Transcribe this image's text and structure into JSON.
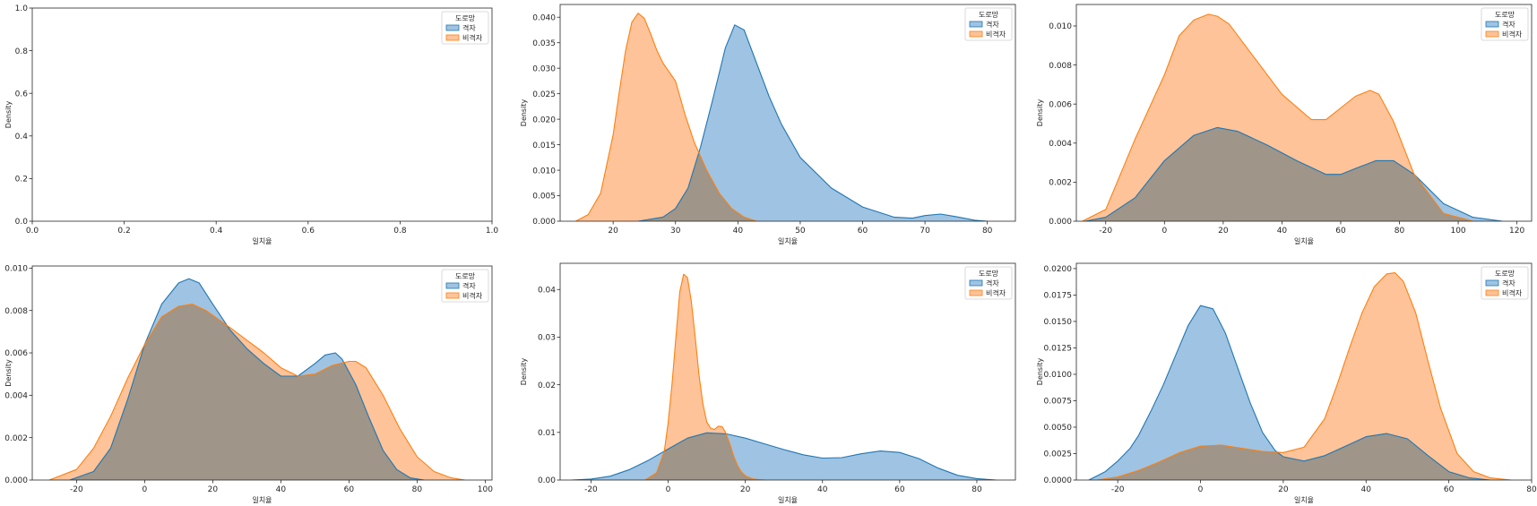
{
  "legend_title": "도로망",
  "legend_labels": [
    "격자",
    "비격자"
  ],
  "colors": {
    "grid": "#1f77b4",
    "nongrid": "#ff7f0e",
    "grid_fill": "#9fc3e2",
    "nongrid_fill": "#ffc399",
    "overlap_fill": "#bdbcb4",
    "axis": "#262626"
  },
  "chart_data": [
    {
      "type": "area",
      "xlabel": "일치율",
      "ylabel": "Density",
      "xlim": [
        0,
        1
      ],
      "ylim": [
        0,
        1
      ],
      "xticks": [
        "0.0",
        "0.2",
        "0.4",
        "0.6",
        "0.8",
        "1.0"
      ],
      "yticks": [
        "0.0",
        "0.2",
        "0.4",
        "0.6",
        "0.8",
        "1.0"
      ],
      "legend": "top-right",
      "series": [
        {
          "name": "격자",
          "x": [],
          "y": []
        },
        {
          "name": "비격자",
          "x": [],
          "y": []
        }
      ]
    },
    {
      "type": "area",
      "xlabel": "일치율",
      "ylabel": "Density",
      "xlim": [
        11.5,
        84.5
      ],
      "ylim": [
        0,
        0.0425
      ],
      "xticks": [
        "20",
        "30",
        "40",
        "50",
        "60",
        "70",
        "80"
      ],
      "yticks": [
        "0.000",
        "0.005",
        "0.010",
        "0.015",
        "0.020",
        "0.025",
        "0.030",
        "0.035",
        "0.040"
      ],
      "legend": "top-right",
      "series": [
        {
          "name": "격자",
          "x": [
            24,
            28,
            30,
            32,
            34,
            36,
            38,
            39.5,
            41,
            43,
            45,
            47,
            50,
            55,
            60,
            65,
            68,
            70,
            72.5,
            75,
            78,
            80
          ],
          "y": [
            0,
            0.0008,
            0.0025,
            0.0065,
            0.0145,
            0.024,
            0.034,
            0.0385,
            0.0375,
            0.031,
            0.0245,
            0.019,
            0.0125,
            0.0065,
            0.0028,
            0.0008,
            0.0006,
            0.0011,
            0.0014,
            0.0009,
            0.0002,
            0
          ]
        },
        {
          "name": "비격자",
          "x": [
            14,
            16,
            18,
            20,
            21,
            22,
            23,
            24,
            25,
            26,
            27,
            28,
            30,
            31.5,
            33,
            35,
            37,
            39,
            41,
            43
          ],
          "y": [
            0,
            0.0013,
            0.0055,
            0.017,
            0.0255,
            0.0335,
            0.039,
            0.0408,
            0.0398,
            0.0368,
            0.0335,
            0.031,
            0.0275,
            0.021,
            0.0155,
            0.01,
            0.0055,
            0.0025,
            0.0008,
            0
          ]
        }
      ]
    },
    {
      "type": "area",
      "xlabel": "일치율",
      "ylabel": "Density",
      "xlim": [
        -30,
        125
      ],
      "ylim": [
        0,
        0.0111
      ],
      "xticks": [
        "-20",
        "0",
        "20",
        "40",
        "60",
        "80",
        "100",
        "120"
      ],
      "yticks": [
        "0.000",
        "0.002",
        "0.004",
        "0.006",
        "0.008",
        "0.010"
      ],
      "legend": "top-right",
      "series": [
        {
          "name": "격자",
          "x": [
            -27,
            -20,
            -10,
            0,
            10,
            18,
            25,
            35,
            45,
            55,
            60,
            65,
            72,
            78,
            85,
            95,
            105,
            115
          ],
          "y": [
            0,
            0.0002,
            0.0012,
            0.0031,
            0.0044,
            0.0048,
            0.0046,
            0.0039,
            0.0031,
            0.0024,
            0.0024,
            0.0027,
            0.0031,
            0.0031,
            0.0024,
            0.0009,
            0.0002,
            0
          ]
        },
        {
          "name": "비격자",
          "x": [
            -28,
            -20,
            -10,
            0,
            5,
            10,
            15,
            18,
            22,
            30,
            40,
            50,
            55,
            60,
            65,
            70,
            73,
            78,
            85,
            95,
            105
          ],
          "y": [
            0,
            0.0006,
            0.0042,
            0.0075,
            0.0095,
            0.0103,
            0.0106,
            0.0105,
            0.0101,
            0.0085,
            0.0065,
            0.0052,
            0.0052,
            0.0058,
            0.0064,
            0.0067,
            0.0065,
            0.0051,
            0.0024,
            0.0004,
            0
          ]
        }
      ]
    },
    {
      "type": "area",
      "xlabel": "일치율",
      "ylabel": "Density",
      "xlim": [
        -33,
        102
      ],
      "ylim": [
        0,
        0.0101
      ],
      "xticks": [
        "-20",
        "0",
        "20",
        "40",
        "60",
        "80",
        "100"
      ],
      "yticks": [
        "0.000",
        "0.002",
        "0.004",
        "0.006",
        "0.008",
        "0.010"
      ],
      "legend": "top-right",
      "series": [
        {
          "name": "격자",
          "x": [
            -22,
            -15,
            -10,
            -5,
            0,
            5,
            10,
            13,
            16,
            20,
            25,
            30,
            35,
            40,
            45,
            50,
            53,
            56,
            58,
            62,
            66,
            70,
            74,
            78,
            82
          ],
          "y": [
            0,
            0.0004,
            0.0015,
            0.0038,
            0.0064,
            0.0083,
            0.0093,
            0.0095,
            0.0093,
            0.0083,
            0.0071,
            0.0062,
            0.0055,
            0.0049,
            0.0049,
            0.0055,
            0.0059,
            0.006,
            0.0057,
            0.0045,
            0.0029,
            0.0014,
            0.0005,
            0.0001,
            0
          ]
        },
        {
          "name": "비격자",
          "x": [
            -28,
            -20,
            -15,
            -10,
            -5,
            0,
            5,
            10,
            14,
            18,
            25,
            30,
            35,
            40,
            45,
            50,
            55,
            60,
            62,
            65,
            70,
            75,
            80,
            85,
            90,
            94
          ],
          "y": [
            0,
            0.0005,
            0.0015,
            0.003,
            0.0048,
            0.0064,
            0.0077,
            0.0082,
            0.0083,
            0.008,
            0.0072,
            0.0066,
            0.006,
            0.0053,
            0.0049,
            0.005,
            0.0054,
            0.0056,
            0.0056,
            0.0053,
            0.004,
            0.0024,
            0.0011,
            0.0004,
            0.0001,
            0
          ]
        }
      ]
    },
    {
      "type": "area",
      "xlabel": "일치율",
      "ylabel": "Density",
      "xlim": [
        -28,
        90
      ],
      "ylim": [
        0,
        0.0455
      ],
      "xticks": [
        "-20",
        "0",
        "20",
        "40",
        "60",
        "80"
      ],
      "yticks": [
        "0.00",
        "0.01",
        "0.02",
        "0.03",
        "0.04"
      ],
      "legend": "top-right",
      "series": [
        {
          "name": "격자",
          "x": [
            -25,
            -20,
            -15,
            -10,
            -5,
            0,
            5,
            10,
            15,
            20,
            25,
            30,
            35,
            40,
            45,
            50,
            55,
            60,
            65,
            70,
            75,
            80,
            85
          ],
          "y": [
            0,
            0.0002,
            0.0008,
            0.0022,
            0.0042,
            0.0065,
            0.0088,
            0.0099,
            0.0097,
            0.0088,
            0.0076,
            0.0064,
            0.0053,
            0.0046,
            0.0047,
            0.0055,
            0.0061,
            0.0058,
            0.0045,
            0.0025,
            0.001,
            0.0003,
            0
          ]
        },
        {
          "name": "비격자",
          "x": [
            -6,
            -3,
            -1,
            0,
            1,
            2,
            3,
            4,
            5,
            6,
            7,
            8,
            9,
            10,
            11,
            12,
            13,
            14,
            15,
            16,
            17,
            18,
            19,
            20,
            22,
            25
          ],
          "y": [
            0,
            0.0015,
            0.006,
            0.012,
            0.02,
            0.03,
            0.0395,
            0.0432,
            0.0425,
            0.0375,
            0.03,
            0.022,
            0.016,
            0.0122,
            0.0109,
            0.0106,
            0.0113,
            0.0112,
            0.0098,
            0.0075,
            0.005,
            0.003,
            0.0017,
            0.0009,
            0.0002,
            0
          ]
        }
      ]
    },
    {
      "type": "area",
      "xlabel": "일치율",
      "ylabel": "Density",
      "xlim": [
        -30,
        80
      ],
      "ylim": [
        0,
        0.0205
      ],
      "xticks": [
        "-20",
        "0",
        "20",
        "40",
        "60",
        "80"
      ],
      "yticks": [
        "0.0000",
        "0.0025",
        "0.0050",
        "0.0075",
        "0.0100",
        "0.0125",
        "0.0150",
        "0.0175",
        "0.0200"
      ],
      "legend": "top-right",
      "series": [
        {
          "name": "격자",
          "x": [
            -27,
            -23,
            -20,
            -17,
            -15,
            -12,
            -9,
            -6,
            -3,
            0,
            3,
            6,
            9,
            12,
            15,
            18,
            20,
            25,
            30,
            35,
            40,
            45,
            50,
            55,
            60,
            65,
            70
          ],
          "y": [
            0,
            0.0008,
            0.0018,
            0.003,
            0.0042,
            0.0065,
            0.009,
            0.0118,
            0.0146,
            0.0165,
            0.0162,
            0.0139,
            0.0106,
            0.0073,
            0.0045,
            0.0028,
            0.0022,
            0.0018,
            0.0023,
            0.0032,
            0.0041,
            0.0044,
            0.0039,
            0.0023,
            0.0008,
            0.0002,
            0
          ]
        },
        {
          "name": "비격자",
          "x": [
            -25,
            -20,
            -15,
            -10,
            -5,
            0,
            5,
            10,
            15,
            20,
            25,
            30,
            33,
            36,
            39,
            42,
            45,
            47,
            49,
            52,
            55,
            58,
            62,
            66,
            70,
            75
          ],
          "y": [
            0,
            0.0003,
            0.0009,
            0.0017,
            0.0026,
            0.0032,
            0.0033,
            0.003,
            0.0027,
            0.0026,
            0.0031,
            0.0058,
            0.009,
            0.0125,
            0.0158,
            0.0183,
            0.0195,
            0.0196,
            0.0188,
            0.0158,
            0.0112,
            0.0068,
            0.0025,
            0.0008,
            0.0002,
            0
          ]
        }
      ]
    }
  ]
}
